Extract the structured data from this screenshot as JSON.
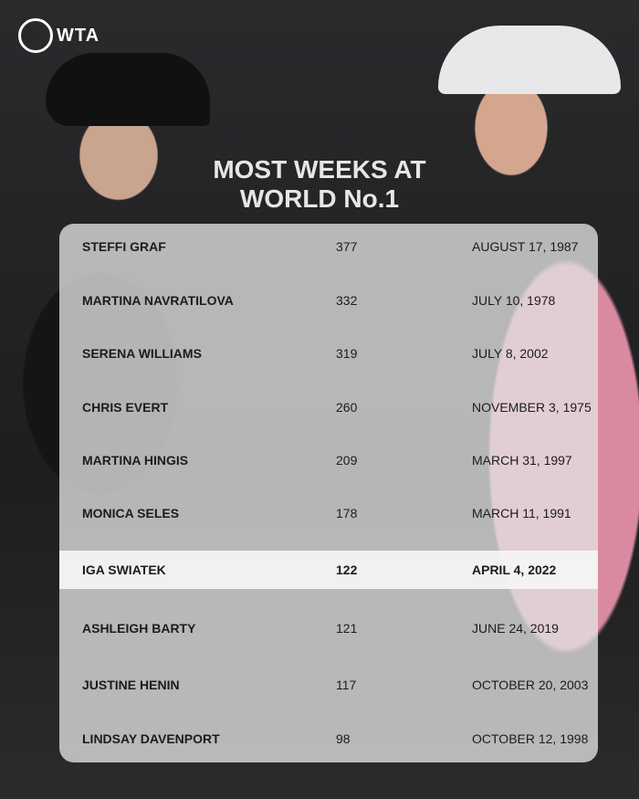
{
  "logo": {
    "text": "WTA"
  },
  "title": [
    "MOST WEEKS AT",
    "WORLD No.1"
  ],
  "colors": {
    "highlight": "#f5f5f5",
    "panel": "#e1e1e1",
    "background": "#1a1a1c"
  },
  "rows": [
    {
      "name": "STEFFI GRAF",
      "weeks": "377",
      "date": "AUGUST 17, 1987"
    },
    {
      "name": "MARTINA NAVRATILOVA",
      "weeks": "332",
      "date": "JULY 10, 1978"
    },
    {
      "name": "SERENA WILLIAMS",
      "weeks": "319",
      "date": "JULY 8, 2002"
    },
    {
      "name": "CHRIS EVERT",
      "weeks": "260",
      "date": "NOVEMBER 3, 1975"
    },
    {
      "name": "MARTINA HINGIS",
      "weeks": "209",
      "date": "MARCH 31, 1997"
    },
    {
      "name": "MONICA SELES",
      "weeks": "178",
      "date": "MARCH 11, 1991"
    },
    {
      "name": "IGA SWIATEK",
      "weeks": "122",
      "date": "APRIL 4, 2022",
      "highlighted": true
    },
    {
      "name": "ASHLEIGH BARTY",
      "weeks": "121",
      "date": "JUNE 24, 2019"
    },
    {
      "name": "JUSTINE HENIN",
      "weeks": "117",
      "date": "OCTOBER 20, 2003"
    },
    {
      "name": "LINDSAY DAVENPORT",
      "weeks": "98",
      "date": "OCTOBER 12, 1998"
    }
  ]
}
